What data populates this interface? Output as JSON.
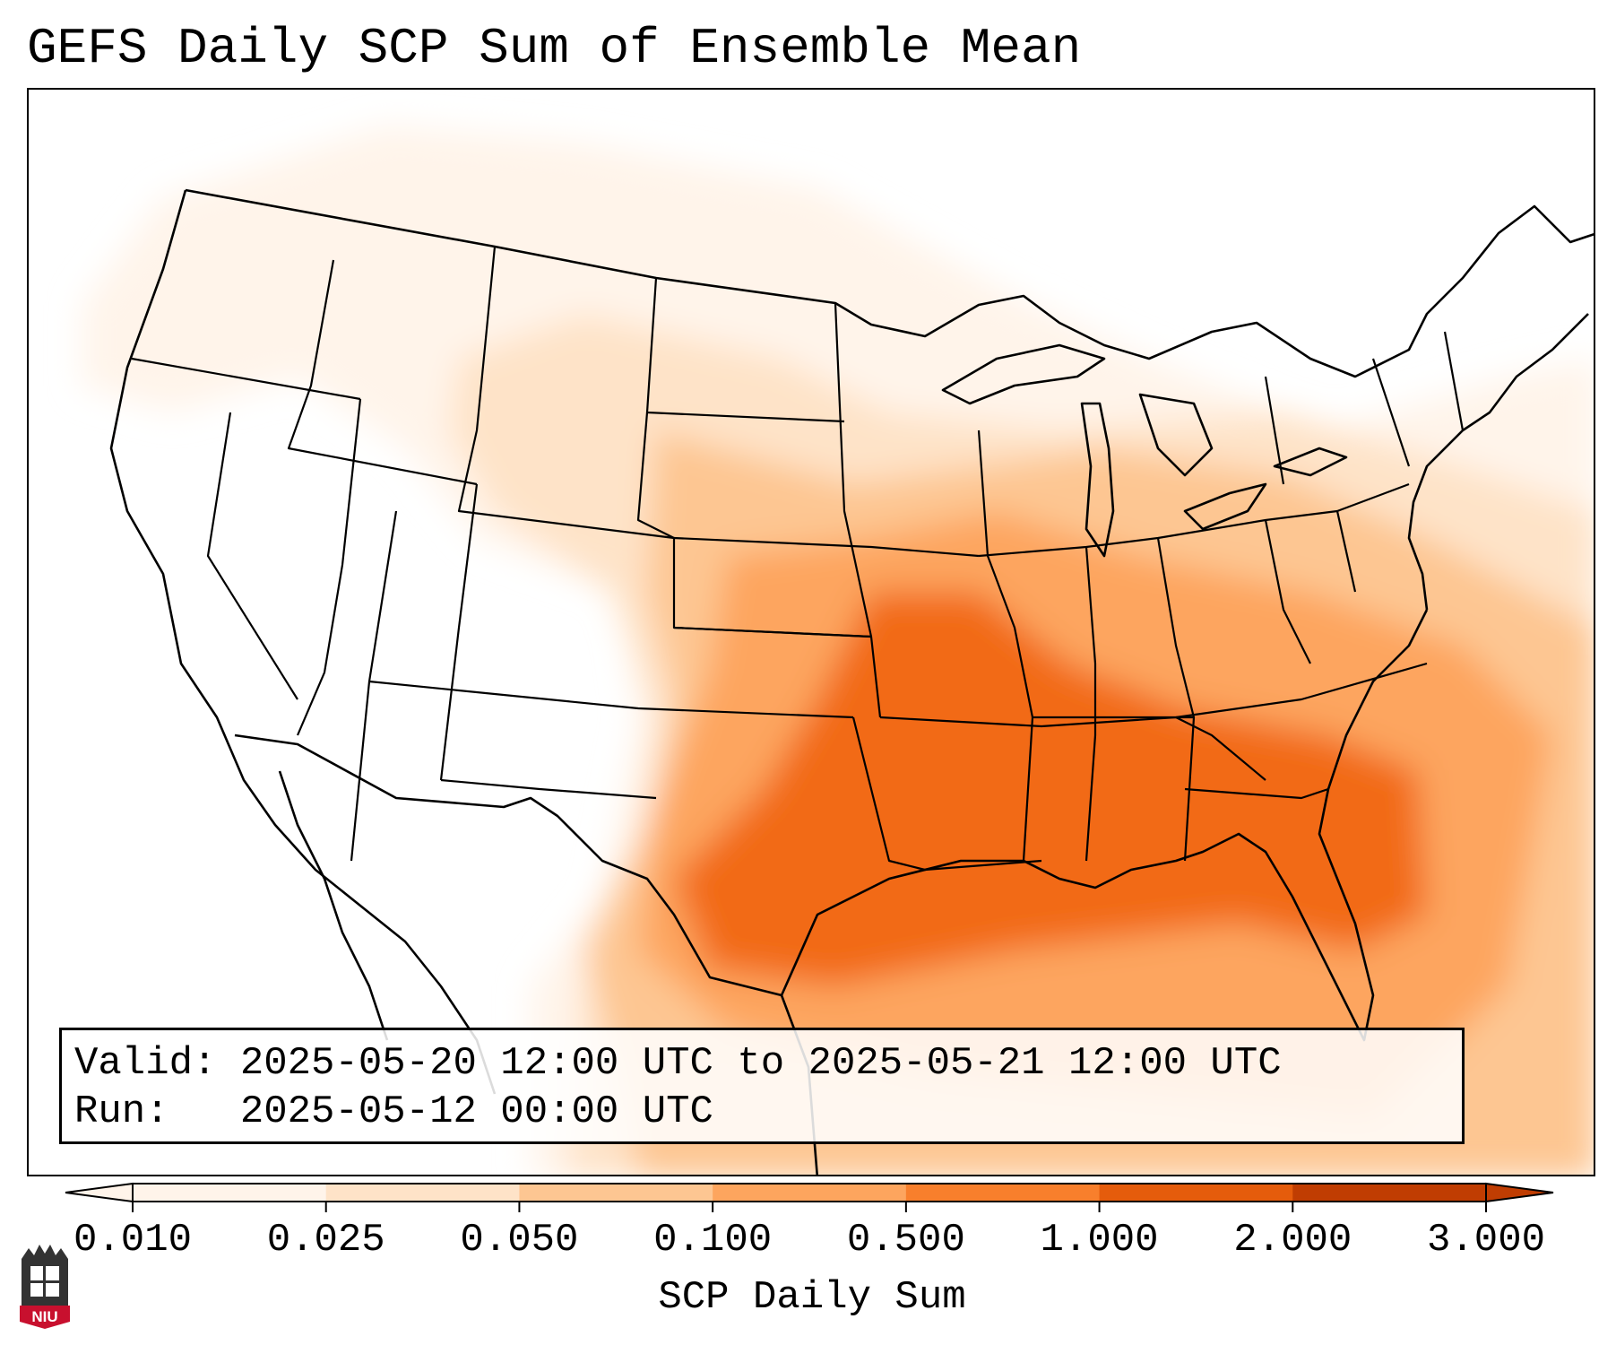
{
  "title": "GEFS Daily SCP Sum of Ensemble Mean",
  "info": {
    "valid_label": "Valid:",
    "valid_value": "2025-05-20 12:00 UTC to 2025-05-21 12:00 UTC",
    "run_label": "Run:",
    "run_value": "2025-05-12 00:00 UTC"
  },
  "colorbar": {
    "label": "SCP Daily Sum",
    "ticks": [
      "0.010",
      "0.025",
      "0.050",
      "0.100",
      "0.500",
      "1.000",
      "2.000",
      "3.000"
    ],
    "colors": [
      "#fff4ea",
      "#fee3c8",
      "#fdc692",
      "#fda55e",
      "#f87f2c",
      "#e55c0c",
      "#c03d02"
    ],
    "extend": "both"
  },
  "logo": {
    "text": "NIU",
    "colors": {
      "tower": "#333333",
      "band": "#c8102e"
    }
  },
  "map": {
    "region": "CONUS",
    "shading_colors": {
      "lightest": "#fff4ea",
      "light": "#fee3c8",
      "medium_light": "#fdc692",
      "medium": "#fda55e",
      "dark": "#f26a18"
    }
  }
}
